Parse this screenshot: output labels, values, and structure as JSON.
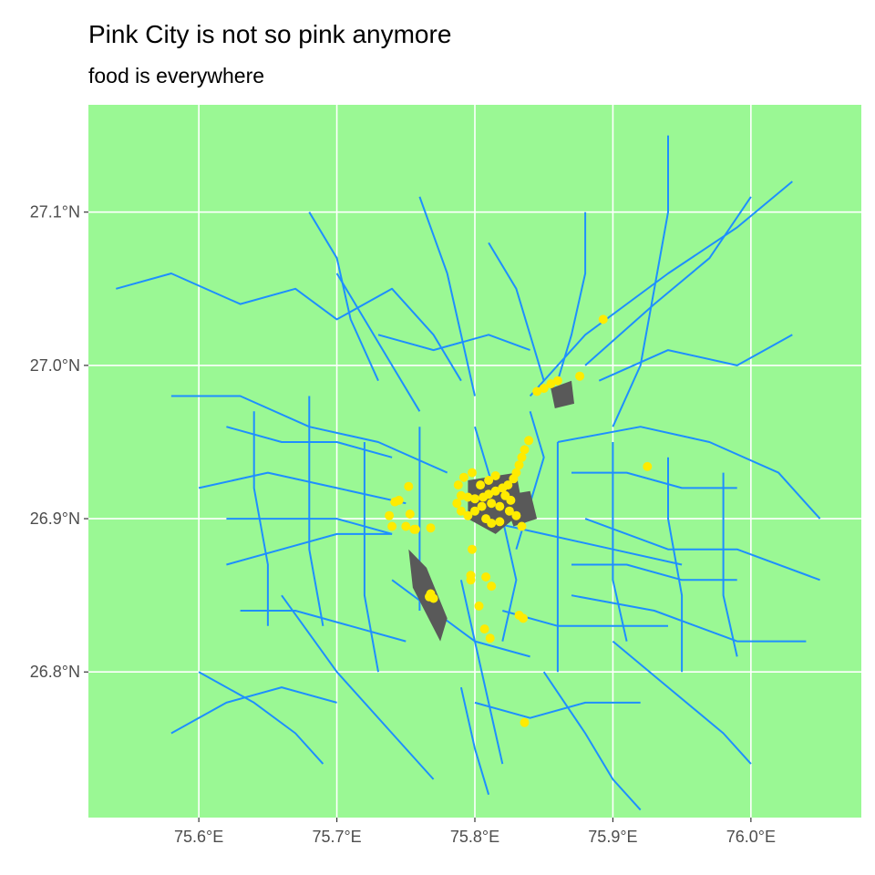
{
  "title": "Pink City is not so pink anymore",
  "subtitle": "food is everywhere",
  "colors": {
    "panel_background": "#9AF894",
    "grid": "#ffffff",
    "roads": "#1E8FFF",
    "built_areas": "#595959",
    "food_points": "#FFEB00"
  },
  "axes": {
    "x": {
      "unit": "longitude",
      "range": [
        75.52,
        76.08
      ],
      "ticks": [
        {
          "value": 75.6,
          "label": "75.6°E"
        },
        {
          "value": 75.7,
          "label": "75.7°E"
        },
        {
          "value": 75.8,
          "label": "75.8°E"
        },
        {
          "value": 75.9,
          "label": "75.9°E"
        },
        {
          "value": 76.0,
          "label": "76.0°E"
        }
      ]
    },
    "y": {
      "unit": "latitude",
      "range": [
        26.705,
        27.17
      ],
      "ticks": [
        {
          "value": 27.1,
          "label": "27.1°N"
        },
        {
          "value": 27.0,
          "label": "27.0°N"
        },
        {
          "value": 26.9,
          "label": "26.9°N"
        },
        {
          "value": 26.8,
          "label": "26.8°N"
        }
      ]
    }
  },
  "roads": [
    [
      [
        75.54,
        27.05
      ],
      [
        75.58,
        27.06
      ],
      [
        75.63,
        27.04
      ],
      [
        75.67,
        27.05
      ],
      [
        75.7,
        27.03
      ],
      [
        75.74,
        27.05
      ],
      [
        75.77,
        27.02
      ],
      [
        75.79,
        26.99
      ]
    ],
    [
      [
        75.58,
        26.98
      ],
      [
        75.63,
        26.98
      ],
      [
        75.68,
        26.96
      ],
      [
        75.73,
        26.95
      ],
      [
        75.78,
        26.93
      ]
    ],
    [
      [
        75.68,
        27.1
      ],
      [
        75.7,
        27.07
      ],
      [
        75.71,
        27.03
      ],
      [
        75.73,
        26.99
      ]
    ],
    [
      [
        75.76,
        27.11
      ],
      [
        75.78,
        27.06
      ],
      [
        75.79,
        27.02
      ],
      [
        75.8,
        26.98
      ]
    ],
    [
      [
        75.81,
        27.08
      ],
      [
        75.83,
        27.05
      ],
      [
        75.84,
        27.02
      ],
      [
        75.85,
        26.99
      ]
    ],
    [
      [
        75.88,
        27.1
      ],
      [
        75.88,
        27.06
      ],
      [
        75.87,
        27.02
      ],
      [
        75.86,
        26.99
      ]
    ],
    [
      [
        75.84,
        26.98
      ],
      [
        75.88,
        27.02
      ],
      [
        75.94,
        27.06
      ],
      [
        75.99,
        27.09
      ],
      [
        76.03,
        27.12
      ]
    ],
    [
      [
        75.88,
        27.0
      ],
      [
        75.93,
        27.04
      ],
      [
        75.97,
        27.07
      ],
      [
        76.0,
        27.11
      ]
    ],
    [
      [
        75.89,
        26.99
      ],
      [
        75.94,
        27.01
      ],
      [
        75.99,
        27.0
      ],
      [
        76.03,
        27.02
      ]
    ],
    [
      [
        75.86,
        26.95
      ],
      [
        75.92,
        26.96
      ],
      [
        75.97,
        26.95
      ],
      [
        76.02,
        26.93
      ],
      [
        76.05,
        26.9
      ]
    ],
    [
      [
        75.94,
        27.15
      ],
      [
        75.94,
        27.1
      ],
      [
        75.93,
        27.05
      ],
      [
        75.92,
        27.0
      ],
      [
        75.9,
        26.96
      ]
    ],
    [
      [
        75.88,
        26.9
      ],
      [
        75.94,
        26.88
      ],
      [
        75.99,
        26.88
      ],
      [
        76.05,
        26.86
      ]
    ],
    [
      [
        75.87,
        26.85
      ],
      [
        75.93,
        26.84
      ],
      [
        75.99,
        26.82
      ],
      [
        76.04,
        26.82
      ]
    ],
    [
      [
        75.9,
        26.82
      ],
      [
        75.94,
        26.79
      ],
      [
        75.98,
        26.76
      ],
      [
        76.0,
        26.74
      ]
    ],
    [
      [
        75.85,
        26.8
      ],
      [
        75.88,
        26.76
      ],
      [
        75.9,
        26.73
      ],
      [
        75.92,
        26.71
      ]
    ],
    [
      [
        75.79,
        26.79
      ],
      [
        75.8,
        26.75
      ],
      [
        75.81,
        26.72
      ]
    ],
    [
      [
        75.66,
        26.85
      ],
      [
        75.7,
        26.8
      ],
      [
        75.74,
        26.76
      ],
      [
        75.77,
        26.73
      ]
    ],
    [
      [
        75.6,
        26.8
      ],
      [
        75.64,
        26.78
      ],
      [
        75.67,
        26.76
      ],
      [
        75.69,
        26.74
      ]
    ],
    [
      [
        75.58,
        26.76
      ],
      [
        75.62,
        26.78
      ],
      [
        75.66,
        26.79
      ],
      [
        75.7,
        26.78
      ]
    ],
    [
      [
        75.62,
        26.87
      ],
      [
        75.66,
        26.88
      ],
      [
        75.7,
        26.89
      ],
      [
        75.74,
        26.89
      ]
    ],
    [
      [
        75.6,
        26.92
      ],
      [
        75.65,
        26.93
      ],
      [
        75.7,
        26.92
      ],
      [
        75.75,
        26.91
      ]
    ],
    [
      [
        75.7,
        27.06
      ],
      [
        75.72,
        27.03
      ],
      [
        75.74,
        27.0
      ],
      [
        75.76,
        26.97
      ]
    ],
    [
      [
        75.8,
        26.96
      ],
      [
        75.81,
        26.93
      ],
      [
        75.82,
        26.9
      ],
      [
        75.83,
        26.86
      ],
      [
        75.82,
        26.82
      ]
    ],
    [
      [
        75.74,
        26.86
      ],
      [
        75.77,
        26.84
      ],
      [
        75.8,
        26.82
      ],
      [
        75.84,
        26.81
      ]
    ],
    [
      [
        75.76,
        26.96
      ],
      [
        75.76,
        26.92
      ],
      [
        75.76,
        26.88
      ],
      [
        75.76,
        26.84
      ]
    ],
    [
      [
        75.68,
        26.98
      ],
      [
        75.68,
        26.93
      ],
      [
        75.68,
        26.88
      ],
      [
        75.69,
        26.83
      ]
    ],
    [
      [
        75.72,
        26.95
      ],
      [
        75.72,
        26.9
      ],
      [
        75.72,
        26.85
      ],
      [
        75.73,
        26.8
      ]
    ],
    [
      [
        75.64,
        26.97
      ],
      [
        75.64,
        26.92
      ],
      [
        75.65,
        26.87
      ],
      [
        75.65,
        26.83
      ]
    ],
    [
      [
        75.86,
        26.95
      ],
      [
        75.86,
        26.9
      ],
      [
        75.86,
        26.85
      ],
      [
        75.86,
        26.8
      ]
    ],
    [
      [
        75.9,
        26.95
      ],
      [
        75.9,
        26.9
      ],
      [
        75.9,
        26.86
      ],
      [
        75.91,
        26.82
      ]
    ],
    [
      [
        75.94,
        26.94
      ],
      [
        75.94,
        26.9
      ],
      [
        75.95,
        26.85
      ],
      [
        75.95,
        26.8
      ]
    ],
    [
      [
        75.98,
        26.93
      ],
      [
        75.98,
        26.89
      ],
      [
        75.98,
        26.85
      ],
      [
        75.99,
        26.81
      ]
    ],
    [
      [
        75.84,
        26.97
      ],
      [
        75.85,
        26.94
      ],
      [
        75.84,
        26.91
      ],
      [
        75.83,
        26.88
      ]
    ],
    [
      [
        75.8,
        26.9
      ],
      [
        75.85,
        26.89
      ],
      [
        75.9,
        26.88
      ],
      [
        75.95,
        26.87
      ]
    ],
    [
      [
        75.82,
        26.84
      ],
      [
        75.86,
        26.83
      ],
      [
        75.9,
        26.83
      ],
      [
        75.94,
        26.83
      ]
    ],
    [
      [
        75.8,
        26.78
      ],
      [
        75.84,
        26.77
      ],
      [
        75.88,
        26.78
      ],
      [
        75.92,
        26.78
      ]
    ],
    [
      [
        75.62,
        26.96
      ],
      [
        75.66,
        26.95
      ],
      [
        75.7,
        26.95
      ],
      [
        75.74,
        26.94
      ]
    ],
    [
      [
        75.62,
        26.9
      ],
      [
        75.66,
        26.9
      ],
      [
        75.7,
        26.9
      ],
      [
        75.74,
        26.89
      ]
    ],
    [
      [
        75.63,
        26.84
      ],
      [
        75.67,
        26.84
      ],
      [
        75.71,
        26.83
      ],
      [
        75.75,
        26.82
      ]
    ],
    [
      [
        75.87,
        26.93
      ],
      [
        75.91,
        26.93
      ],
      [
        75.95,
        26.92
      ],
      [
        75.99,
        26.92
      ]
    ],
    [
      [
        75.87,
        26.87
      ],
      [
        75.91,
        26.87
      ],
      [
        75.95,
        26.86
      ],
      [
        75.99,
        26.86
      ]
    ],
    [
      [
        75.73,
        27.02
      ],
      [
        75.77,
        27.01
      ],
      [
        75.81,
        27.02
      ],
      [
        75.84,
        27.01
      ]
    ],
    [
      [
        75.79,
        26.86
      ],
      [
        75.8,
        26.82
      ],
      [
        75.81,
        26.78
      ],
      [
        75.82,
        26.74
      ]
    ]
  ],
  "built_areas": [
    [
      [
        75.795,
        26.925
      ],
      [
        75.83,
        26.93
      ],
      [
        75.835,
        26.905
      ],
      [
        75.815,
        26.89
      ],
      [
        75.795,
        26.9
      ]
    ],
    [
      [
        75.752,
        26.88
      ],
      [
        75.765,
        26.868
      ],
      [
        75.78,
        26.835
      ],
      [
        75.775,
        26.82
      ],
      [
        75.755,
        26.855
      ]
    ],
    [
      [
        75.855,
        26.985
      ],
      [
        75.87,
        26.99
      ],
      [
        75.872,
        26.975
      ],
      [
        75.858,
        26.972
      ]
    ],
    [
      [
        75.82,
        26.915
      ],
      [
        75.84,
        26.918
      ],
      [
        75.845,
        26.9
      ],
      [
        75.828,
        26.895
      ]
    ]
  ],
  "food_points": [
    [
      75.893,
      27.03
    ],
    [
      75.876,
      26.993
    ],
    [
      75.86,
      26.99
    ],
    [
      75.855,
      26.988
    ],
    [
      75.85,
      26.985
    ],
    [
      75.845,
      26.983
    ],
    [
      75.839,
      26.951
    ],
    [
      75.836,
      26.945
    ],
    [
      75.834,
      26.94
    ],
    [
      75.832,
      26.935
    ],
    [
      75.83,
      26.93
    ],
    [
      75.828,
      26.926
    ],
    [
      75.824,
      26.922
    ],
    [
      75.82,
      26.92
    ],
    [
      75.815,
      26.918
    ],
    [
      75.81,
      26.916
    ],
    [
      75.806,
      26.914
    ],
    [
      75.8,
      26.913
    ],
    [
      75.795,
      26.914
    ],
    [
      75.79,
      26.915
    ],
    [
      75.787,
      26.91
    ],
    [
      75.79,
      26.905
    ],
    [
      75.795,
      26.902
    ],
    [
      75.8,
      26.905
    ],
    [
      75.805,
      26.908
    ],
    [
      75.812,
      26.91
    ],
    [
      75.818,
      26.908
    ],
    [
      75.825,
      26.905
    ],
    [
      75.83,
      26.902
    ],
    [
      75.834,
      26.895
    ],
    [
      75.826,
      26.912
    ],
    [
      75.822,
      26.915
    ],
    [
      75.792,
      26.927
    ],
    [
      75.798,
      26.93
    ],
    [
      75.804,
      26.922
    ],
    [
      75.81,
      26.925
    ],
    [
      75.815,
      26.928
    ],
    [
      75.788,
      26.922
    ],
    [
      75.808,
      26.9
    ],
    [
      75.812,
      26.897
    ],
    [
      75.818,
      26.898
    ],
    [
      75.798,
      26.88
    ],
    [
      75.797,
      26.863
    ],
    [
      75.797,
      26.86
    ],
    [
      75.808,
      26.862
    ],
    [
      75.812,
      26.856
    ],
    [
      75.803,
      26.843
    ],
    [
      75.807,
      26.828
    ],
    [
      75.811,
      26.822
    ],
    [
      75.832,
      26.837
    ],
    [
      75.835,
      26.835
    ],
    [
      75.836,
      26.767
    ],
    [
      75.925,
      26.934
    ],
    [
      75.752,
      26.921
    ],
    [
      75.745,
      26.912
    ],
    [
      75.742,
      26.911
    ],
    [
      75.738,
      26.902
    ],
    [
      75.74,
      26.895
    ],
    [
      75.753,
      26.903
    ],
    [
      75.75,
      26.895
    ],
    [
      75.756,
      26.893
    ],
    [
      75.768,
      26.894
    ],
    [
      75.768,
      26.851
    ],
    [
      75.77,
      26.848
    ],
    [
      75.767,
      26.849
    ],
    [
      75.757,
      26.893
    ]
  ]
}
